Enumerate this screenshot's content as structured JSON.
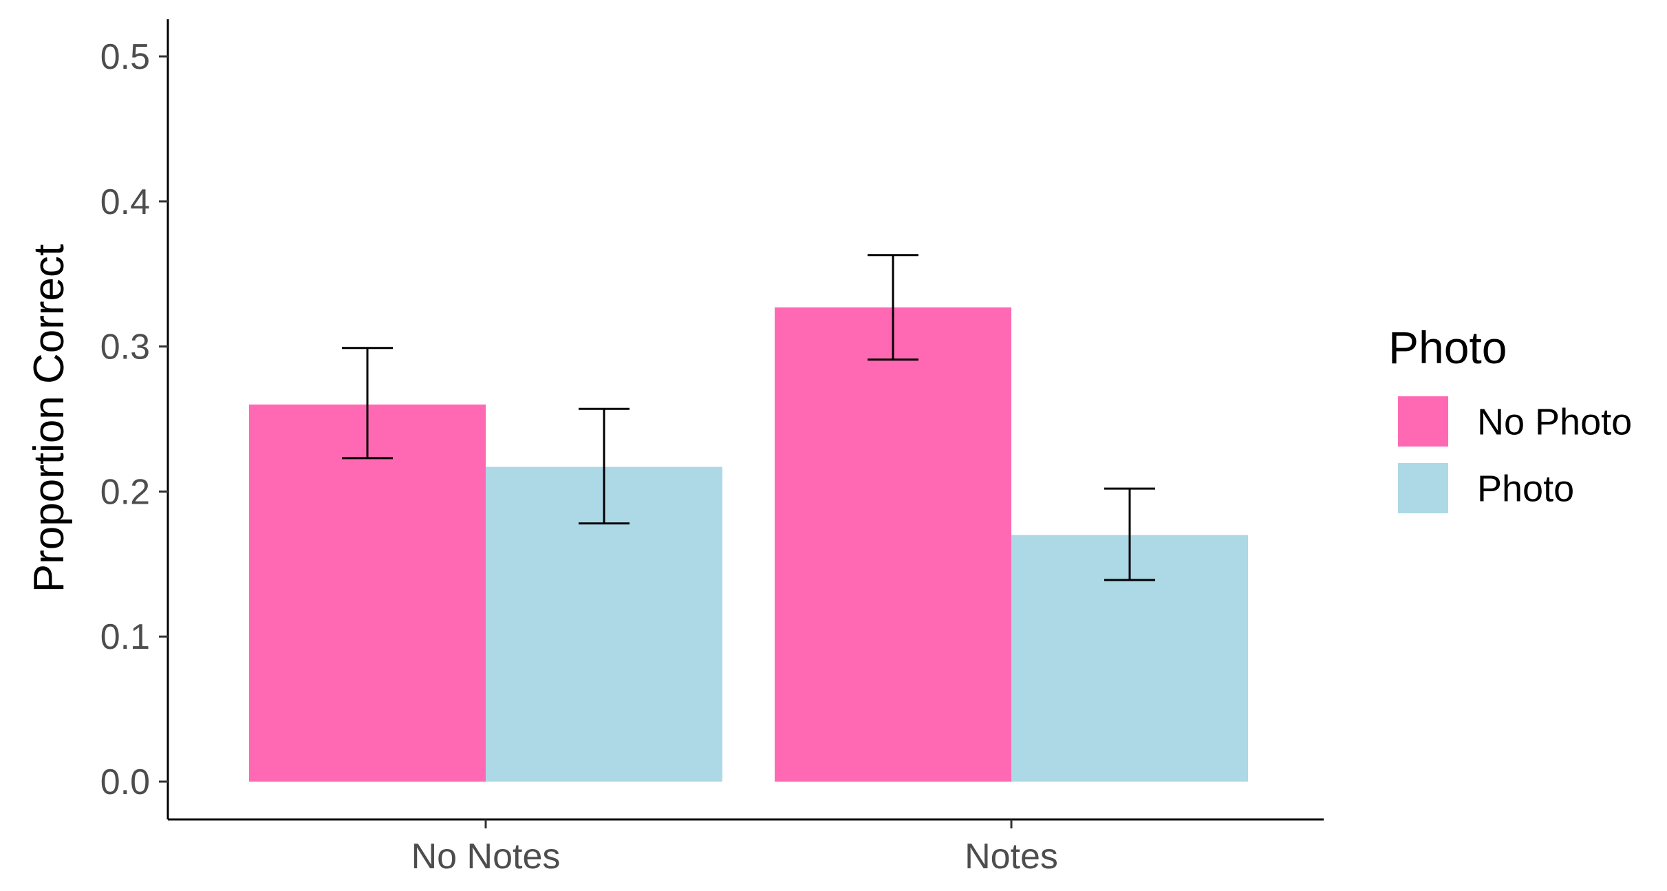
{
  "chart_data": {
    "type": "bar",
    "title": "",
    "xlabel": "",
    "ylabel": "Proportion Correct",
    "categories": [
      "No Notes",
      "Notes"
    ],
    "series": [
      {
        "name": "No Photo",
        "color": "#ff69b4",
        "values": [
          0.26,
          0.327
        ],
        "error_low": [
          0.223,
          0.291
        ],
        "error_high": [
          0.299,
          0.363
        ]
      },
      {
        "name": "Photo",
        "color": "#add8e6",
        "values": [
          0.217,
          0.17
        ],
        "error_low": [
          0.178,
          0.139
        ],
        "error_high": [
          0.257,
          0.202
        ]
      }
    ],
    "ylim": [
      -0.025,
      0.52
    ],
    "yticks": [
      0.0,
      0.1,
      0.2,
      0.3,
      0.4,
      0.5
    ],
    "ytick_labels": [
      "0.0",
      "0.1",
      "0.2",
      "0.3",
      "0.4",
      "0.5"
    ],
    "grid": false,
    "legend": {
      "title": "Photo",
      "placement": "right",
      "items": [
        "No Photo",
        "Photo"
      ]
    }
  }
}
